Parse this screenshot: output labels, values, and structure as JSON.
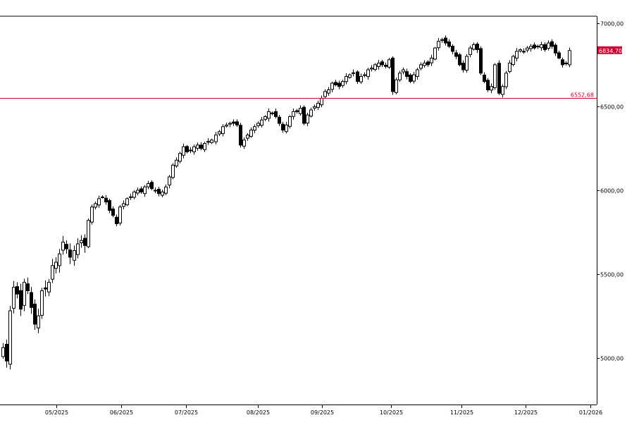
{
  "chart_data": {
    "type": "candlestick",
    "y_ticks": [
      5000,
      5500,
      6000,
      6500,
      7000
    ],
    "y_tick_labels": [
      "5000,00",
      "5500,00",
      "6000,00",
      "6500,00",
      "7000,00"
    ],
    "ylim": [
      4720,
      7040
    ],
    "x_tick_labels": [
      "05/2025",
      "06/2025",
      "07/2025",
      "08/2025",
      "09/2025",
      "10/2025",
      "11/2025",
      "12/2025",
      "01/2026"
    ],
    "grid": false,
    "horizontal_line": {
      "value": 6552.68,
      "label": "6552,68",
      "color": "#cc0033"
    },
    "last_price": {
      "value": 6834.7,
      "label": "6834,70",
      "color": "#cc0033"
    },
    "candle_up_color": "#ffffff",
    "candle_down_color": "#000000",
    "closes": [
      5060,
      4980,
      5280,
      5420,
      5380,
      5290,
      5450,
      5400,
      5300,
      5200,
      5250,
      5400,
      5410,
      5450,
      5550,
      5570,
      5620,
      5690,
      5650,
      5600,
      5640,
      5680,
      5700,
      5670,
      5820,
      5900,
      5920,
      5950,
      5960,
      5930,
      5880,
      5850,
      5800,
      5900,
      5920,
      5950,
      5960,
      5990,
      6000,
      5990,
      6020,
      6040,
      6010,
      6000,
      5980,
      5990,
      6020,
      6080,
      6150,
      6180,
      6220,
      6260,
      6230,
      6240,
      6260,
      6270,
      6250,
      6280,
      6290,
      6300,
      6330,
      6350,
      6380,
      6390,
      6400,
      6400,
      6390,
      6270,
      6300,
      6330,
      6360,
      6380,
      6400,
      6420,
      6440,
      6470,
      6460,
      6440,
      6400,
      6360,
      6390,
      6440,
      6470,
      6470,
      6490,
      6400,
      6450,
      6480,
      6500,
      6520,
      6550,
      6590,
      6600,
      6640,
      6630,
      6620,
      6650,
      6680,
      6690,
      6700,
      6650,
      6680,
      6690,
      6720,
      6730,
      6750,
      6760,
      6750,
      6740,
      6780,
      6590,
      6660,
      6700,
      6720,
      6680,
      6650,
      6690,
      6720,
      6750,
      6760,
      6750,
      6790,
      6850,
      6890,
      6900,
      6880,
      6860,
      6830,
      6800,
      6750,
      6720,
      6800,
      6850,
      6870,
      6840,
      6700,
      6650,
      6600,
      6620,
      6750,
      6580,
      6620,
      6700,
      6760,
      6800,
      6830,
      6840,
      6830,
      6850,
      6860,
      6850,
      6860,
      6870,
      6840,
      6880,
      6860,
      6820,
      6790,
      6750,
      6760,
      6834.7
    ]
  }
}
